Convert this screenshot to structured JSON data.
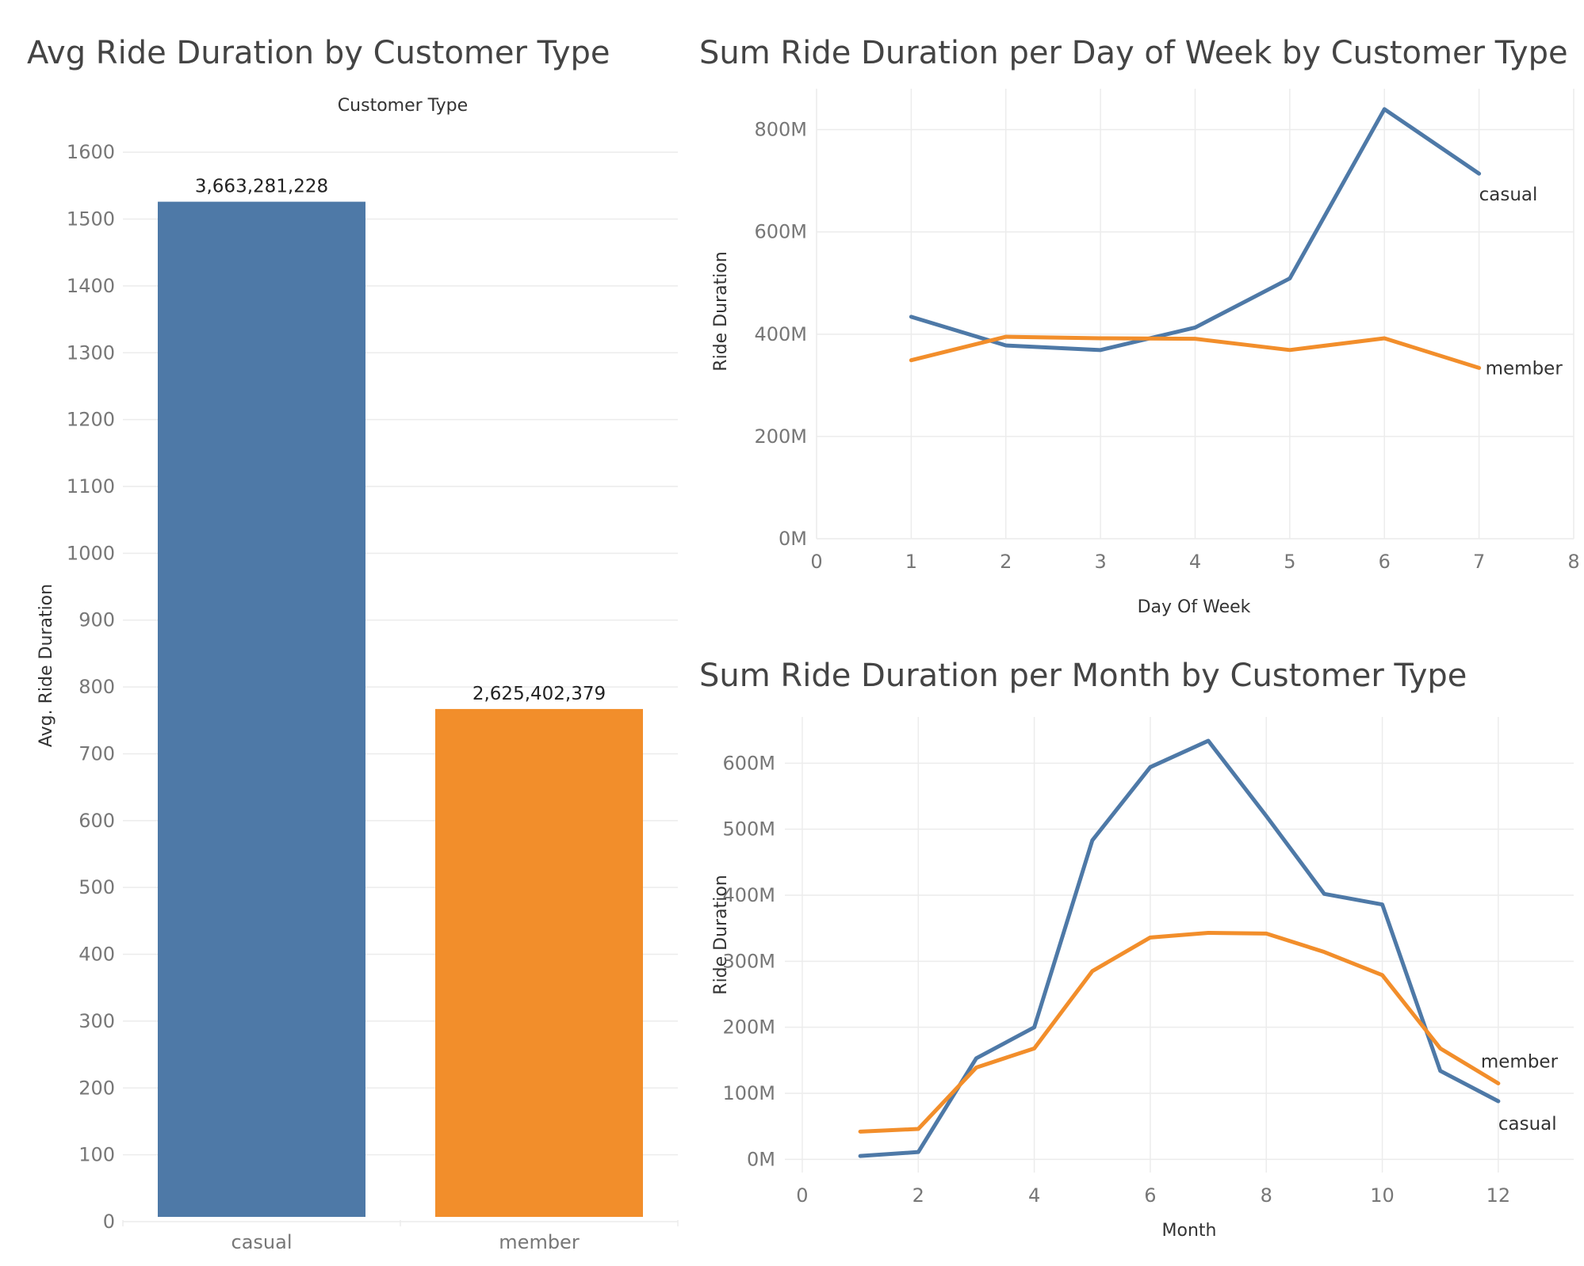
{
  "colors": {
    "casual": "#4e79a7",
    "member": "#f28e2b",
    "grid": "#ececec",
    "tick": "#777777"
  },
  "chart_data": [
    {
      "id": "bar",
      "type": "bar",
      "title": "Avg Ride Duration by Customer Type",
      "column_header": "Customer Type",
      "ylabel": "Avg. Ride Duration",
      "categories": [
        "casual",
        "member"
      ],
      "values": [
        1526,
        767
      ],
      "data_labels": [
        "3,663,281,228",
        "2,625,402,379"
      ],
      "ylim": [
        0,
        1650
      ],
      "yticks": [
        0,
        100,
        200,
        300,
        400,
        500,
        600,
        700,
        800,
        900,
        1000,
        1100,
        1200,
        1300,
        1400,
        1500,
        1600
      ],
      "ytick_labels": [
        "0",
        "100",
        "200",
        "300",
        "400",
        "500",
        "600",
        "700",
        "800",
        "900",
        "1000",
        "1100",
        "1200",
        "1300",
        "1400",
        "1500",
        "1600"
      ],
      "grid": true
    },
    {
      "id": "dow",
      "type": "line",
      "title": "Sum Ride Duration per Day of Week by Customer Type",
      "xlabel": "Day Of Week",
      "ylabel": "Ride Duration",
      "xlim": [
        0,
        8
      ],
      "ylim": [
        0,
        880000000
      ],
      "xticks": [
        0,
        1,
        2,
        3,
        4,
        5,
        6,
        7,
        8
      ],
      "xtick_labels": [
        "0",
        "1",
        "2",
        "3",
        "4",
        "5",
        "6",
        "7",
        "8"
      ],
      "yticks": [
        0,
        200000000,
        400000000,
        600000000,
        800000000
      ],
      "ytick_labels": [
        "0M",
        "200M",
        "400M",
        "600M",
        "800M"
      ],
      "grid": true,
      "series": [
        {
          "name": "casual",
          "x": [
            1,
            2,
            3,
            4,
            5,
            6,
            7
          ],
          "values": [
            434000000,
            378000000,
            369000000,
            413000000,
            509000000,
            840000000,
            714000000
          ]
        },
        {
          "name": "member",
          "x": [
            1,
            2,
            3,
            4,
            5,
            6,
            7
          ],
          "values": [
            349000000,
            395000000,
            392000000,
            391000000,
            369000000,
            392000000,
            334000000
          ]
        }
      ]
    },
    {
      "id": "month",
      "type": "line",
      "title": "Sum Ride Duration per Month by Customer Type",
      "xlabel": "Month",
      "ylabel": "Ride Duration",
      "xlim": [
        -0.3,
        13.3
      ],
      "ylim": [
        -20000000,
        670000000
      ],
      "xticks": [
        0,
        2,
        4,
        6,
        8,
        10,
        12
      ],
      "xtick_labels": [
        "0",
        "2",
        "4",
        "6",
        "8",
        "10",
        "12"
      ],
      "yticks": [
        0,
        100000000,
        200000000,
        300000000,
        400000000,
        500000000,
        600000000
      ],
      "ytick_labels": [
        "0M",
        "100M",
        "200M",
        "300M",
        "400M",
        "500M",
        "600M"
      ],
      "grid": true,
      "series": [
        {
          "name": "casual",
          "x": [
            1,
            2,
            3,
            4,
            5,
            6,
            7,
            8,
            9,
            10,
            11,
            12
          ],
          "values": [
            5000000,
            11000000,
            153000000,
            200000000,
            483000000,
            594000000,
            634000000,
            520000000,
            402000000,
            386000000,
            134000000,
            88000000
          ]
        },
        {
          "name": "member",
          "x": [
            1,
            2,
            3,
            4,
            5,
            6,
            7,
            8,
            9,
            10,
            11,
            12
          ],
          "values": [
            42000000,
            46000000,
            139000000,
            168000000,
            285000000,
            336000000,
            343000000,
            342000000,
            314000000,
            279000000,
            168000000,
            115000000
          ]
        }
      ]
    }
  ]
}
